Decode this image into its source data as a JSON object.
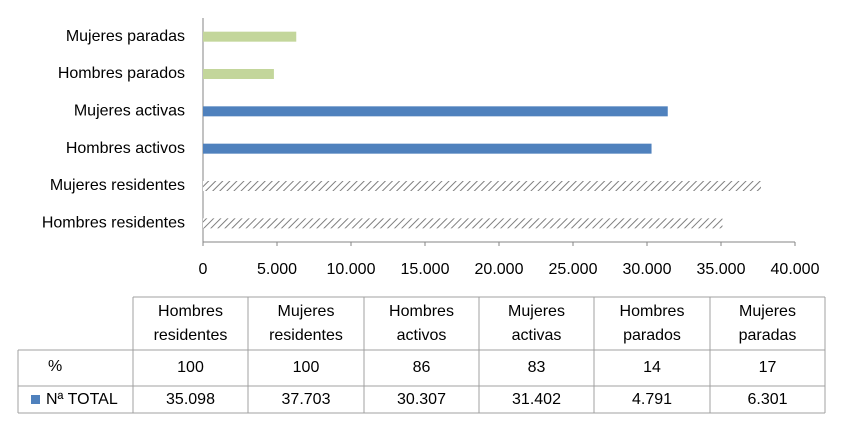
{
  "chart_data": {
    "type": "bar",
    "orientation": "horizontal",
    "categories": [
      "Hombres residentes",
      "Mujeres residentes",
      "Hombres activos",
      "Mujeres activas",
      "Hombres parados",
      "Mujeres paradas"
    ],
    "series": [
      {
        "name": "Nª TOTAL",
        "color": "#4f81bd",
        "values": [
          35098,
          37703,
          30307,
          31402,
          4791,
          6301
        ],
        "value_labels": [
          "35.098",
          "37.703",
          "30.307",
          "31.402",
          "4.791",
          "6.301"
        ]
      }
    ],
    "bar_colors": [
      "#7f7f7f",
      "#7f7f7f",
      "#4f81bd",
      "#4f81bd",
      "#c3d69b",
      "#c3d69b"
    ],
    "bar_hatched": [
      true,
      true,
      false,
      false,
      false,
      false
    ],
    "percent_row": {
      "name": "%",
      "values": [
        100,
        100,
        86,
        83,
        14,
        17
      ]
    },
    "xlim": [
      0,
      40000
    ],
    "xticks": [
      0,
      {
        "value": 5000,
        "label": "5.000"
      },
      {
        "value": 10000,
        "label": "10.000"
      },
      {
        "value": 15000,
        "label": "15.000"
      },
      {
        "value": 20000,
        "label": "20.000"
      },
      {
        "value": 25000,
        "label": "25.000"
      },
      {
        "value": 30000,
        "label": "30.000"
      },
      {
        "value": 35000,
        "label": "35.000"
      },
      {
        "value": 40000,
        "label": "40.000"
      }
    ],
    "grid": false
  }
}
